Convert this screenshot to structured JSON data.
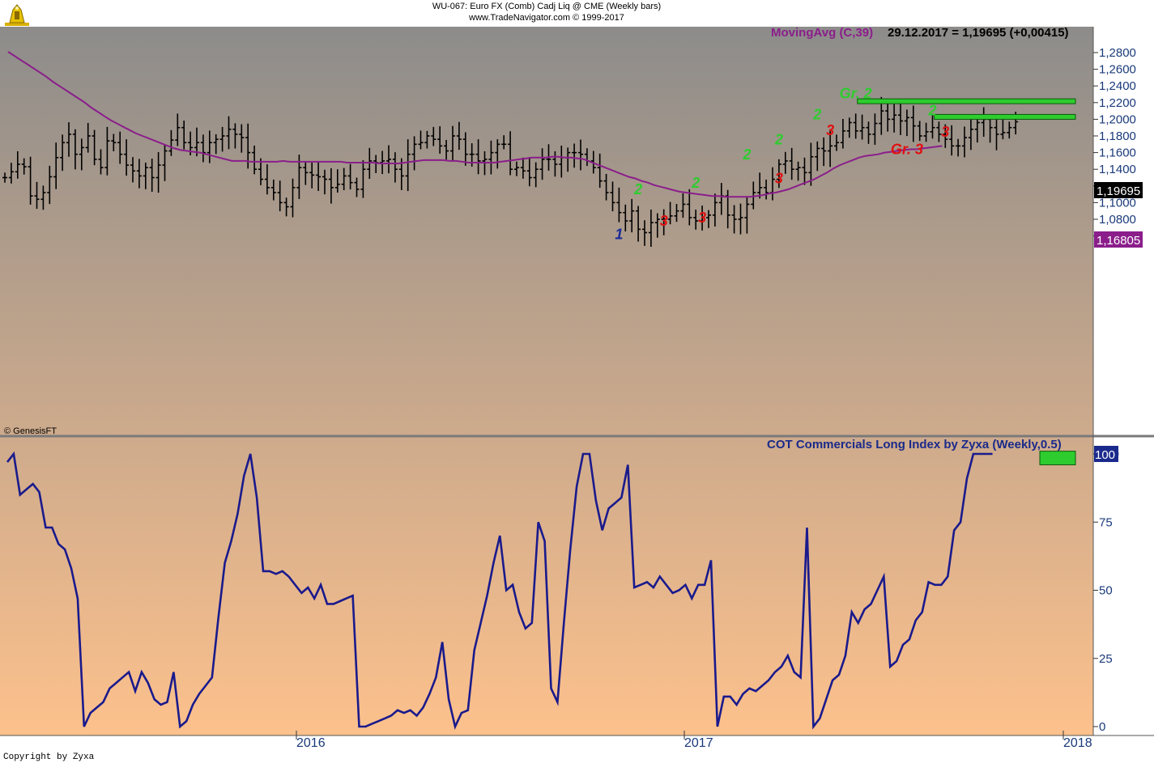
{
  "header": {
    "title": "WU-067:  Euro FX (Comb) Cadj Liq @ CME  (Weekly bars)",
    "subtitle": "www.TradeNavigator.com © 1999-2017"
  },
  "copyright": "Copyright by Zyxa",
  "credit": "© GenesisFT",
  "colors": {
    "bg_top": "#8d8c8b",
    "bg_bottom": "#fdc18c",
    "ma_line": "#8b1e8b",
    "cot_line": "#1a1a8c",
    "green": "#2ecc2e",
    "red": "#e01010",
    "blue": "#1a2a9a"
  },
  "chart_data": [
    {
      "type": "ohlc",
      "title": "Euro FX weekly bars",
      "indicator": {
        "label": "MovingAvg (C,39)",
        "readout": "29.12.2017 = 1,19695 (+0,00415)"
      },
      "yticks": [
        "1,2800",
        "1,2600",
        "1,2400",
        "1,2200",
        "1,2000",
        "1,1800",
        "1,1600",
        "1,1400",
        "1,1200",
        "1,1000",
        "1,0800",
        "1,0600"
      ],
      "ylim": [
        1.052,
        1.298
      ],
      "last_price": "1,19695",
      "ma_value": "1,16805",
      "xlabels": [
        "2016",
        "2017",
        "2018"
      ],
      "annotations": [
        {
          "text": "1",
          "color": "blue",
          "week": 96,
          "price": 1.056
        },
        {
          "text": "2",
          "color": "green",
          "week": 99,
          "price": 1.11
        },
        {
          "text": "3",
          "color": "red",
          "week": 103,
          "price": 1.072
        },
        {
          "text": "2",
          "color": "green",
          "week": 108,
          "price": 1.118
        },
        {
          "text": "3",
          "color": "red",
          "week": 109,
          "price": 1.076
        },
        {
          "text": "2",
          "color": "green",
          "week": 116,
          "price": 1.152
        },
        {
          "text": "3",
          "color": "red",
          "week": 121,
          "price": 1.123
        },
        {
          "text": "2",
          "color": "green",
          "week": 121,
          "price": 1.17
        },
        {
          "text": "2",
          "color": "green",
          "week": 127,
          "price": 1.2
        },
        {
          "text": "3",
          "color": "red",
          "week": 129,
          "price": 1.181
        },
        {
          "text": "Gr. 2",
          "color": "green",
          "week": 133,
          "price": 1.225
        },
        {
          "text": "Gr. 3",
          "color": "red",
          "week": 141,
          "price": 1.158
        },
        {
          "text": "2",
          "color": "green",
          "week": 145,
          "price": 1.205
        },
        {
          "text": "3",
          "color": "red",
          "week": 147,
          "price": 1.179
        }
      ],
      "zones": [
        {
          "from_week": 132,
          "to_week": 152,
          "price_hi": 1.2245,
          "price_lo": 1.2215
        },
        {
          "from_week": 144,
          "to_week": 152,
          "price_hi": 1.2058,
          "price_lo": 1.2035
        }
      ],
      "ohlc_close_path": [
        1.13,
        1.137,
        1.146,
        1.143,
        1.108,
        1.104,
        1.112,
        1.131,
        1.154,
        1.172,
        1.182,
        1.158,
        1.166,
        1.18,
        1.152,
        1.142,
        1.174,
        1.172,
        1.158,
        1.145,
        1.138,
        1.132,
        1.142,
        1.13,
        1.145,
        1.162,
        1.175,
        1.19,
        1.172,
        1.166,
        1.172,
        1.16,
        1.172,
        1.176,
        1.18,
        1.188,
        1.182,
        1.178,
        1.16,
        1.14,
        1.128,
        1.118,
        1.112,
        1.1,
        1.095,
        1.118,
        1.142,
        1.136,
        1.133,
        1.131,
        1.128,
        1.118,
        1.122,
        1.132,
        1.124,
        1.116,
        1.14,
        1.15,
        1.148,
        1.15,
        1.152,
        1.14,
        1.132,
        1.158,
        1.17,
        1.172,
        1.18,
        1.176,
        1.168,
        1.162,
        1.18,
        1.176,
        1.158,
        1.158,
        1.15,
        1.152,
        1.16,
        1.17,
        1.17,
        1.14,
        1.142,
        1.138,
        1.13,
        1.14,
        1.152,
        1.152,
        1.146,
        1.154,
        1.16,
        1.16,
        1.158,
        1.15,
        1.142,
        1.126,
        1.112,
        1.1,
        1.088,
        1.078,
        1.09,
        1.068,
        1.064,
        1.076,
        1.08,
        1.08,
        1.084,
        1.09,
        1.098,
        1.082,
        1.078,
        1.082,
        1.085,
        1.1,
        1.108,
        1.085,
        1.08,
        1.082,
        1.098,
        1.112,
        1.118,
        1.112,
        1.128,
        1.146,
        1.15,
        1.14,
        1.142,
        1.136,
        1.155,
        1.165,
        1.162,
        1.168,
        1.172,
        1.186,
        1.196,
        1.186,
        1.19,
        1.182,
        1.195,
        1.21,
        1.2,
        1.205,
        1.198,
        1.202,
        1.192,
        1.18,
        1.185,
        1.19,
        1.182,
        1.176,
        1.168,
        1.168,
        1.178,
        1.188,
        1.196,
        1.2,
        1.19,
        1.182,
        1.184,
        1.19,
        1.197
      ],
      "ma_path": [
        1.281,
        1.276,
        1.271,
        1.266,
        1.261,
        1.256,
        1.251,
        1.245,
        1.24,
        1.235,
        1.23,
        1.225,
        1.22,
        1.214,
        1.209,
        1.204,
        1.199,
        1.195,
        1.191,
        1.187,
        1.183,
        1.18,
        1.177,
        1.174,
        1.171,
        1.168,
        1.165,
        1.163,
        1.162,
        1.161,
        1.16,
        1.158,
        1.156,
        1.154,
        1.152,
        1.15,
        1.15,
        1.15,
        1.149,
        1.149,
        1.149,
        1.149,
        1.149,
        1.15,
        1.149,
        1.149,
        1.149,
        1.149,
        1.149,
        1.149,
        1.149,
        1.149,
        1.149,
        1.148,
        1.148,
        1.148,
        1.148,
        1.148,
        1.147,
        1.147,
        1.147,
        1.147,
        1.148,
        1.149,
        1.15,
        1.151,
        1.151,
        1.151,
        1.151,
        1.15,
        1.15,
        1.149,
        1.148,
        1.148,
        1.148,
        1.148,
        1.148,
        1.149,
        1.15,
        1.151,
        1.152,
        1.153,
        1.154,
        1.154,
        1.154,
        1.155,
        1.155,
        1.154,
        1.154,
        1.153,
        1.152,
        1.149,
        1.146,
        1.143,
        1.14,
        1.137,
        1.134,
        1.131,
        1.129,
        1.126,
        1.124,
        1.121,
        1.119,
        1.117,
        1.115,
        1.113,
        1.112,
        1.111,
        1.11,
        1.109,
        1.108,
        1.108,
        1.107,
        1.107,
        1.107,
        1.107,
        1.107,
        1.108,
        1.109,
        1.111,
        1.112,
        1.114,
        1.116,
        1.119,
        1.122,
        1.125,
        1.128,
        1.132,
        1.136,
        1.141,
        1.145,
        1.148,
        1.151,
        1.154,
        1.156,
        1.157,
        1.158,
        1.16,
        1.161,
        1.162,
        1.163,
        1.164,
        1.164,
        1.165,
        1.166,
        1.167,
        1.168
      ]
    },
    {
      "type": "line",
      "title": "COT Commercials Long Index by Zyxa (Weekly,0.5)",
      "yticks": [
        "100",
        "75",
        "50",
        "25",
        "0"
      ],
      "ylim": [
        0,
        100
      ],
      "last_value": "100",
      "series": [
        {
          "values": [
            97,
            100,
            85,
            87,
            89,
            86,
            73,
            73,
            67,
            65,
            58,
            47,
            0,
            5,
            7,
            9,
            14,
            16,
            18,
            20,
            13,
            20,
            16,
            10,
            8,
            9,
            20,
            0,
            2,
            8,
            12,
            15,
            18,
            40,
            60,
            68,
            78,
            92,
            100,
            84,
            57,
            57,
            56,
            57,
            55,
            52,
            49,
            51,
            47,
            52,
            45,
            45,
            46,
            47,
            48,
            0,
            0,
            1,
            2,
            3,
            4,
            6,
            5,
            6,
            4,
            7,
            12,
            18,
            31,
            10,
            0,
            5,
            6,
            28,
            38,
            48,
            60,
            70,
            50,
            52,
            42,
            36,
            38,
            75,
            68,
            14,
            9,
            38,
            65,
            88,
            100,
            100,
            83,
            72,
            80,
            82,
            84,
            96,
            51,
            52,
            53,
            51,
            55,
            52,
            49,
            50,
            52,
            47,
            52,
            52,
            61,
            0,
            11,
            11,
            8,
            12,
            14,
            13,
            15,
            17,
            20,
            22,
            26,
            20,
            18,
            73,
            0,
            3,
            10,
            17,
            19,
            26,
            42,
            38,
            43,
            45,
            50,
            55,
            22,
            24,
            30,
            32,
            39,
            42,
            53,
            52,
            52,
            55,
            72,
            75,
            91,
            100,
            100,
            100,
            100
          ]
        }
      ],
      "zones": [
        {
          "from_week": 149,
          "to_week": 152,
          "value_hi": 101,
          "value_lo": 96
        }
      ]
    }
  ]
}
